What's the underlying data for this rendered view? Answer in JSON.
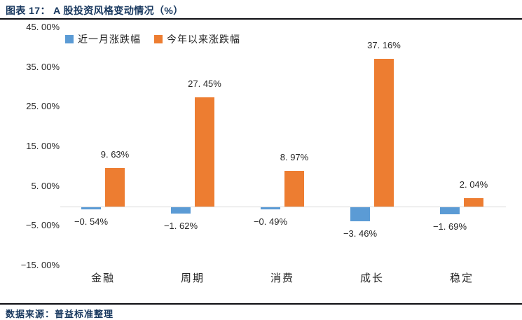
{
  "header": {
    "title": "图表 17：  A 股投资风格变动情况（%）"
  },
  "footer": {
    "source": "数据来源：普益标准整理"
  },
  "colors": {
    "series_monthly": "#5B9BD5",
    "series_ytd": "#ED7D31",
    "title_text": "#17375E",
    "rule_line": "#0D0D12",
    "axis_line": "#D9D9D9",
    "label_text": "#262626"
  },
  "chart_data": {
    "type": "bar",
    "title": "A 股投资风格变动情况（%）",
    "categories": [
      "金融",
      "周期",
      "消费",
      "成长",
      "稳定"
    ],
    "series": [
      {
        "name": "近一月涨跌幅",
        "color": "#5B9BD5",
        "values": [
          -0.54,
          -1.62,
          -0.49,
          -3.46,
          -1.69
        ],
        "labels": [
          "−0. 54%",
          "−1. 62%",
          "−0. 49%",
          "−3. 46%",
          "−1. 69%"
        ]
      },
      {
        "name": "今年以来涨跌幅",
        "color": "#ED7D31",
        "values": [
          9.63,
          27.45,
          8.97,
          37.16,
          2.04
        ],
        "labels": [
          "9. 63%",
          "27. 45%",
          "8. 97%",
          "37. 16%",
          "2. 04%"
        ]
      }
    ],
    "y_ticks": [
      "45. 00%",
      "35. 00%",
      "25. 00%",
      "15. 00%",
      "5. 00%",
      "−5. 00%",
      "−15. 00%"
    ],
    "y_tick_values": [
      45,
      35,
      25,
      15,
      5,
      -5,
      -15
    ],
    "ylim": [
      -15,
      45
    ],
    "xlabel": "",
    "ylabel": "",
    "grid": false,
    "legend_position": "top"
  }
}
